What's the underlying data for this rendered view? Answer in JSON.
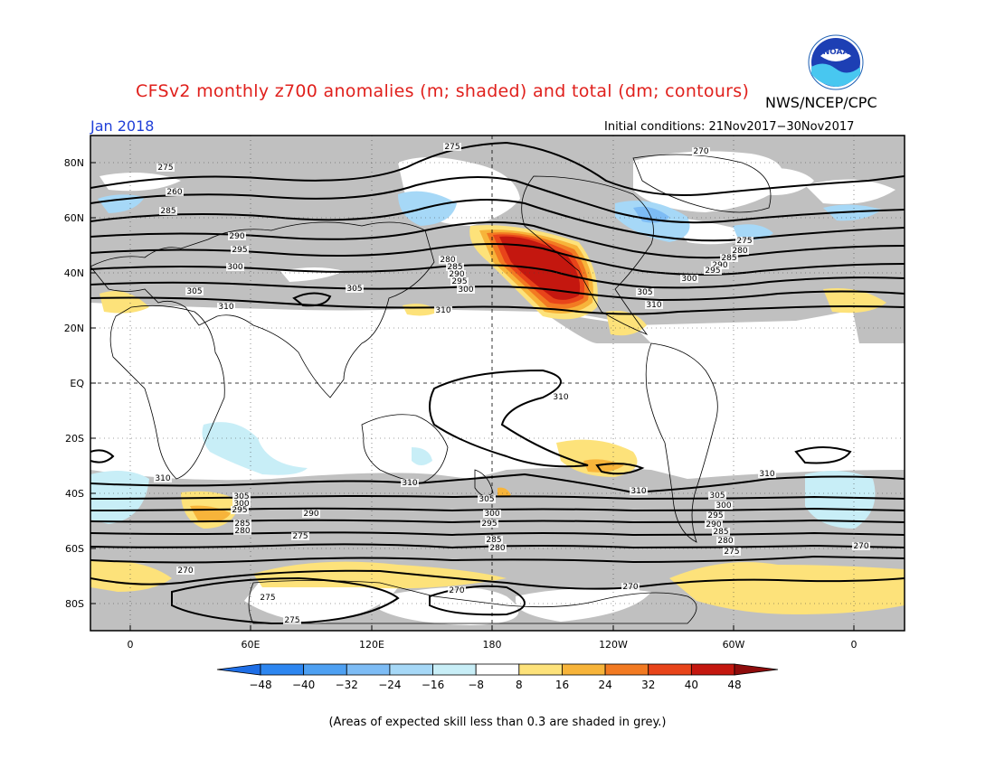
{
  "header": {
    "title": "CFSv2 monthly z700 anomalies (m; shaded) and total (dm; contours)",
    "agency": "NWS/NCEP/CPC",
    "month": "Jan 2018",
    "initial_conditions": "Initial conditions: 21Nov2017−30Nov2017",
    "logo_text": "NOAA"
  },
  "map": {
    "lat_labels": [
      "80N",
      "60N",
      "40N",
      "20N",
      "EQ",
      "20S",
      "40S",
      "60S",
      "80S"
    ],
    "lon_labels": [
      "0",
      "60E",
      "120E",
      "180",
      "120W",
      "60W",
      "0"
    ],
    "contour_labels": [
      "275",
      "270",
      "280",
      "285",
      "290",
      "295",
      "300",
      "305",
      "310"
    ],
    "skill_shading_color": "#c0c0c0",
    "land_line_color": "#000000"
  },
  "colorbar": {
    "tick_labels": [
      "−48",
      "−40",
      "−32",
      "−24",
      "−16",
      "−8",
      "8",
      "16",
      "24",
      "32",
      "40",
      "48"
    ],
    "colors": [
      "#1e6ee6",
      "#2d86f0",
      "#4ea0f2",
      "#7dbcf5",
      "#a6d8f7",
      "#c8eef7",
      "#ffffff",
      "#fde27a",
      "#f7b43a",
      "#f27a22",
      "#e8441a",
      "#c4170f",
      "#8e0c0c"
    ]
  },
  "footnote": "(Areas of expected skill less than 0.3 are shaded in grey.)"
}
